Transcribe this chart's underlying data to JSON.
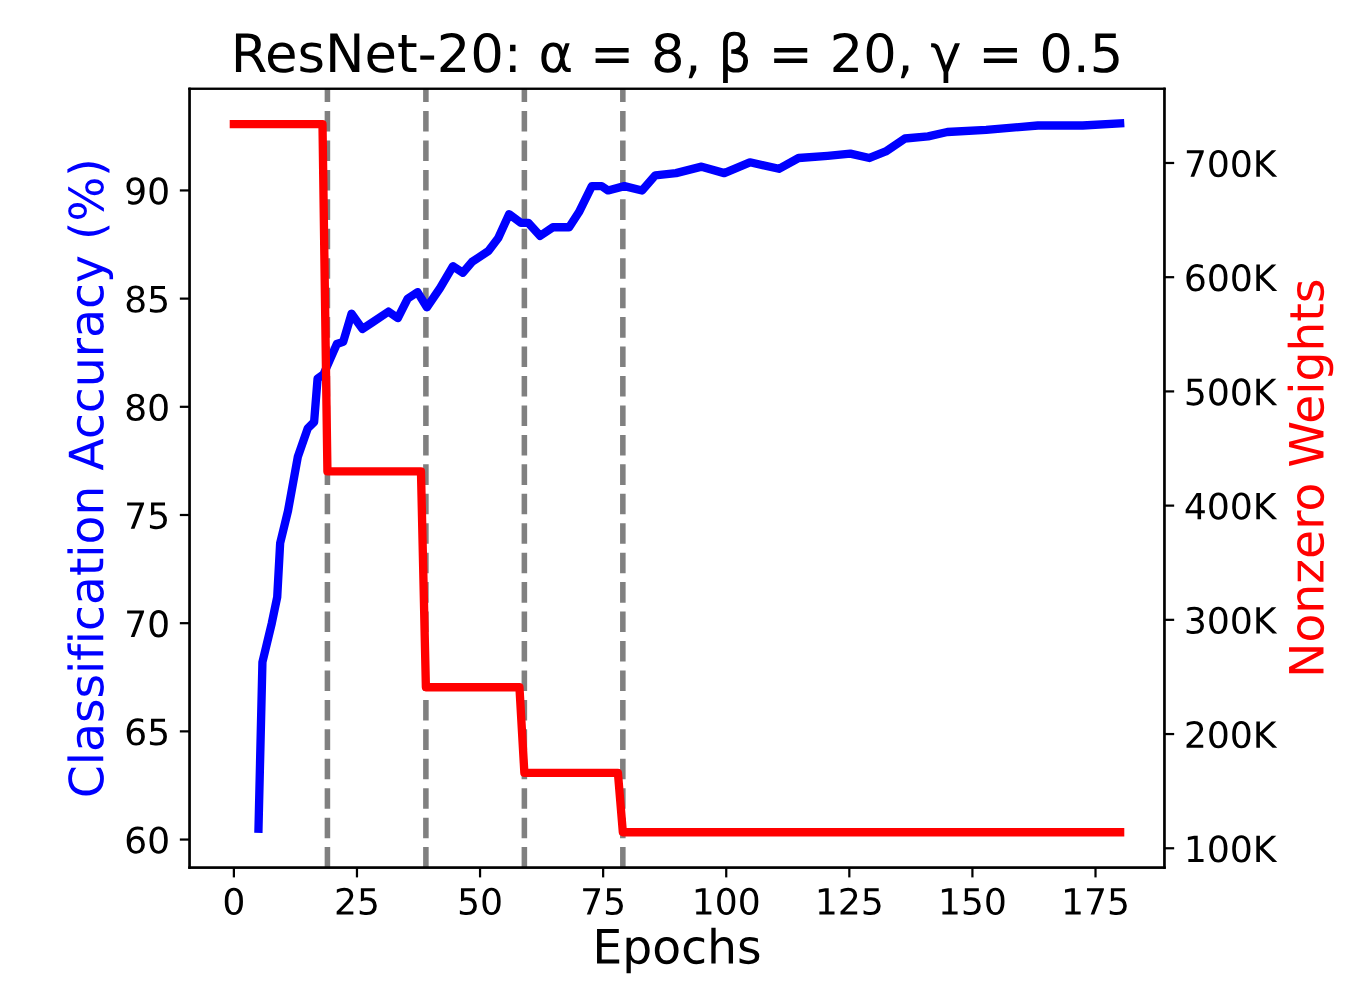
{
  "chart_data": {
    "type": "line",
    "title": "ResNet-20: α = 8, β = 20, γ = 0.5",
    "xlabel": "Epochs",
    "ylabel": "Classification Accuracy (%)",
    "y2label": "Nonzero Weights",
    "series": [
      {
        "color": "#0000ff",
        "x": [
          5,
          5.8,
          7.7,
          8.8,
          9.4,
          11,
          13,
          15,
          16.3,
          17,
          18.2,
          20.9,
          22.2,
          23.9,
          26.1,
          28.1,
          31.4,
          33.3,
          35.3,
          37.3,
          39.2,
          41.9,
          44.5,
          46.5,
          48.4,
          51.7,
          53.7,
          55.9,
          58.3,
          59.8,
          62.2,
          64.8,
          68.1,
          70.1,
          72.7,
          74.7,
          76,
          79.3,
          82.9,
          85.6,
          89.8,
          95,
          99.6,
          104.8,
          110.7,
          114.7,
          120.6,
          125.2,
          129.1,
          132.4,
          136.3,
          141,
          144.9,
          152.8,
          163.3,
          168.5,
          172.4,
          180
        ],
        "values": [
          60.5,
          68.2,
          70.0,
          71.2,
          73.7,
          75.2,
          77.7,
          79.0,
          79.3,
          81.3,
          81.5,
          82.9,
          83.0,
          84.3,
          83.6,
          83.9,
          84.4,
          84.1,
          85.0,
          85.3,
          84.6,
          85.5,
          86.5,
          86.2,
          86.7,
          87.2,
          87.8,
          88.9,
          88.5,
          88.5,
          87.9,
          88.3,
          88.3,
          89.0,
          90.2,
          90.2,
          90.0,
          90.2,
          90.0,
          90.7,
          90.8,
          91.1,
          90.8,
          91.3,
          91.0,
          91.5,
          91.6,
          91.7,
          91.5,
          91.8,
          92.4,
          92.5,
          92.7,
          92.8,
          93.0,
          93.0,
          93.0,
          93.1
        ]
      },
      {
        "color": "#ff0000",
        "axis": "y2",
        "x": [
          0,
          18,
          19,
          38,
          39,
          58,
          59,
          78,
          79,
          180
        ],
        "values": [
          734000,
          734000,
          430000,
          430000,
          241000,
          241000,
          166000,
          166000,
          114000,
          114000
        ]
      }
    ],
    "xlim": [
      -9,
      189
    ],
    "xticks": [
      0,
      25,
      50,
      75,
      100,
      125,
      150,
      175
    ],
    "ylim": [
      58.7,
      94.7
    ],
    "yticks": [
      60,
      65,
      70,
      75,
      80,
      85,
      90
    ],
    "y2lim": [
      83000,
      765000
    ],
    "y2ticks": [
      {
        "value": 100000,
        "label": "100K"
      },
      {
        "value": 200000,
        "label": "200K"
      },
      {
        "value": 300000,
        "label": "300K"
      },
      {
        "value": 400000,
        "label": "400K"
      },
      {
        "value": 500000,
        "label": "500K"
      },
      {
        "value": 600000,
        "label": "600K"
      },
      {
        "value": 700000,
        "label": "700K"
      }
    ],
    "ref_lines": [
      {
        "axis": "x",
        "value": 19,
        "color": "#808080",
        "line_style": "dashed"
      },
      {
        "axis": "x",
        "value": 39,
        "color": "#808080",
        "line_style": "dashed"
      },
      {
        "axis": "x",
        "value": 59,
        "color": "#808080",
        "line_style": "dashed"
      },
      {
        "axis": "x",
        "value": 79,
        "color": "#808080",
        "line_style": "dashed"
      }
    ],
    "grid": false,
    "legend": false,
    "line_style": "solid",
    "marker": "none"
  }
}
